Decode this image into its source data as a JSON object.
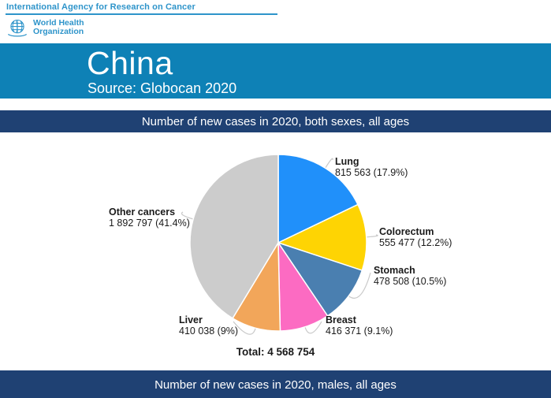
{
  "header": {
    "agency": "International Agency for Research on Cancer",
    "who_line1": "World Health",
    "who_line2": "Organization"
  },
  "title_banner": {
    "title": "China",
    "source": "Source: Globocan 2020"
  },
  "section_banners": {
    "both_sexes": "Number of new cases in 2020, both sexes, all ages",
    "males": "Number of new cases in 2020, males, all ages"
  },
  "chart_data": {
    "type": "pie",
    "title": "Number of new cases in 2020, both sexes, all ages",
    "total": 4568754,
    "total_label": "Total: 4 568 754",
    "start_angle_deg": 0,
    "direction": "clockwise-from-top",
    "slices": [
      {
        "label": "Lung",
        "value": 815563,
        "percent": 17.9,
        "value_text": "815 563 (17.9%)",
        "color": "#2090fa"
      },
      {
        "label": "Colorectum",
        "value": 555477,
        "percent": 12.2,
        "value_text": "555 477 (12.2%)",
        "color": "#fed403"
      },
      {
        "label": "Stomach",
        "value": 478508,
        "percent": 10.5,
        "value_text": "478 508 (10.5%)",
        "color": "#4a7fb0"
      },
      {
        "label": "Breast",
        "value": 416371,
        "percent": 9.1,
        "value_text": "416 371 (9.1%)",
        "color": "#fc6bc2"
      },
      {
        "label": "Liver",
        "value": 410038,
        "percent": 9.0,
        "value_text": "410 038 (9%)",
        "color": "#f2a65a"
      },
      {
        "label": "Other cancers",
        "value": 1892797,
        "percent": 41.4,
        "value_text": "1 892 797 (41.4%)",
        "color": "#cccccc"
      }
    ]
  },
  "colors": {
    "teal_banner": "#0e81b6",
    "navy_banner": "#1f4173",
    "iarc_blue": "#2e94ca",
    "leader_line": "#c9c9c9"
  }
}
